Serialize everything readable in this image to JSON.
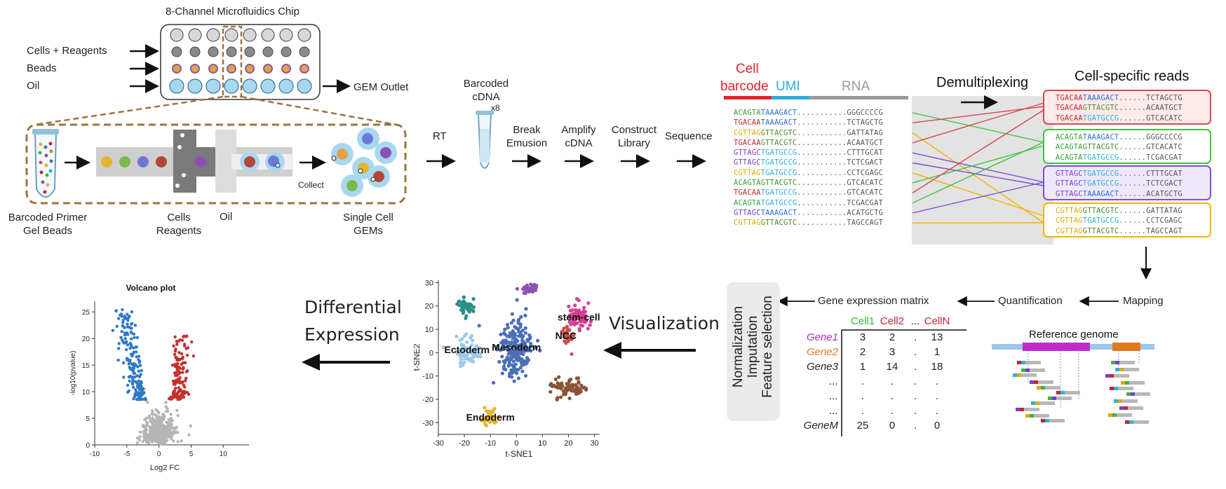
{
  "microfluidics": {
    "chip_title": "8-Channel Microfluidics Chip",
    "inputs": [
      "Cells + Reagents",
      "Beads",
      "Oil"
    ],
    "outlet": "GEM Outlet",
    "gel_beads_label": "Barcoded Primer Gel Beads",
    "cells_label": "Cells Reagents",
    "oil_label": "Oil",
    "collect_label": "Collect",
    "gems_label": "Single Cell GEMs"
  },
  "workflow": {
    "rt": "RT",
    "cdna_label": "Barcoded cDNA",
    "cdna_mult": "x8",
    "break": "Break Emusion",
    "amplify": "Amplify cDNA",
    "construct": "Construct Library",
    "sequence": "Sequence"
  },
  "demux": {
    "cell_label": "Cell",
    "barcode_label": "barcode",
    "umi_label": "UMI",
    "rna_label": "RNA",
    "demux_label": "Demultiplexing",
    "reads_label": "Cell-specific reads",
    "left_reads": [
      {
        "bc": "ACAGTA",
        "umi": "TAAAGACT",
        "rna": "GGGCCCCG",
        "bc_color": "#2fa52f"
      },
      {
        "bc": "TGACAA",
        "umi": "TAAAGACT",
        "rna": "TCTAGCTG",
        "bc_color": "#c0282e"
      },
      {
        "bc": "CGTTAG",
        "umi": "GTTACGTC",
        "rna": "GATTATAG",
        "bc_color": "#e0a800"
      },
      {
        "bc": "TGACAA",
        "umi": "GTTACGTC",
        "rna": "ACAATGCT",
        "bc_color": "#c0282e"
      },
      {
        "bc": "GTTAGC",
        "umi": "TGATGCCG",
        "rna": "CTTTGCAT",
        "bc_color": "#7a3fd0"
      },
      {
        "bc": "GTTAGC",
        "umi": "TGATGCCG",
        "rna": "TCTCGACT",
        "bc_color": "#7a3fd0"
      },
      {
        "bc": "CGTTAG",
        "umi": "TGATGCCG",
        "rna": "CCTCGAGC",
        "bc_color": "#e0a800"
      },
      {
        "bc": "ACAGTA",
        "umi": "GTTACGTC",
        "rna": "GTCACATC",
        "bc_color": "#2fa52f"
      },
      {
        "bc": "TGACAA",
        "umi": "TGATGCCG",
        "rna": "GTCACATC",
        "bc_color": "#c0282e"
      },
      {
        "bc": "ACAGTA",
        "umi": "TGATGCCG",
        "rna": "TCGACGAT",
        "bc_color": "#2fa52f"
      },
      {
        "bc": "GTTAGC",
        "umi": "TAAAGACT",
        "rna": "ACATGCTG",
        "bc_color": "#7a3fd0"
      },
      {
        "bc": "CGTTAG",
        "umi": "GTTACGTC",
        "rna": "TAGCCAGT",
        "bc_color": "#e0a800"
      }
    ],
    "groups": [
      {
        "color": "#d9474f",
        "bg": "#fdeaea",
        "bc_color": "#c0282e",
        "reads": [
          {
            "bc": "TGACAA",
            "umi": "TAAAGACT",
            "rna": "TCTAGCTG"
          },
          {
            "bc": "TGACAA",
            "umi": "GTTACGTC",
            "rna": "ACAATGCT"
          },
          {
            "bc": "TGACAA",
            "umi": "TGATGCCG",
            "rna": "GTCACATC"
          }
        ]
      },
      {
        "color": "#3cc43c",
        "bg": "#ffffff",
        "bc_color": "#2fa52f",
        "reads": [
          {
            "bc": "ACAGTA",
            "umi": "TAAAGACT",
            "rna": "GGGCCCCG"
          },
          {
            "bc": "ACAGTA",
            "umi": "GTTACGTC",
            "rna": "GTCACATC"
          },
          {
            "bc": "ACAGTA",
            "umi": "TGATGCCG",
            "rna": "TCGACGAT"
          }
        ]
      },
      {
        "color": "#7a4fd6",
        "bg": "#efe8fb",
        "bc_color": "#7a3fd0",
        "reads": [
          {
            "bc": "GTTAGC",
            "umi": "TGATGCCG",
            "rna": "CTTTGCAT"
          },
          {
            "bc": "GTTAGC",
            "umi": "TGATGCCG",
            "rna": "TCTCGACT"
          },
          {
            "bc": "GTTAGC",
            "umi": "TAAAGACT",
            "rna": "ACATGCTG"
          }
        ]
      },
      {
        "color": "#f0b400",
        "bg": "#ffffff",
        "bc_color": "#e0a800",
        "reads": [
          {
            "bc": "CGTTAG",
            "umi": "GTTACGTC",
            "rna": "GATTATAG"
          },
          {
            "bc": "CGTTAG",
            "umi": "TGATGCCG",
            "rna": "CCTCGAGC"
          },
          {
            "bc": "CGTTAG",
            "umi": "GTTACGTC",
            "rna": "TAGCCAGT"
          }
        ]
      }
    ],
    "umi_colors": {
      "TAAAGACT": "#2a6fd6",
      "GTTACGTC": "#4a8a2a",
      "TGATGCCG": "#2ab0e0"
    }
  },
  "pipeline": {
    "mapping": "Mapping",
    "quantification": "Quantification",
    "gene_matrix": "Gene expression matrix",
    "reference_genome": "Reference genome",
    "processing": [
      "Normalization",
      "Imputation",
      "Feature selection"
    ],
    "visualization": "Visualization",
    "differential": [
      "Differential",
      "Expression"
    ]
  },
  "matrix": {
    "columns": [
      "Cell1",
      "Cell2",
      "...",
      "CellN"
    ],
    "column_colors": [
      "#3cb43c",
      "#c0282e",
      "#222222",
      "#c0282e"
    ],
    "rows": [
      {
        "gene": "Gene1",
        "color": "#b02fc0",
        "values": [
          "3",
          "2",
          ".",
          "13"
        ]
      },
      {
        "gene": "Gene2",
        "color": "#e07a1f",
        "values": [
          "2",
          "3",
          ".",
          "1"
        ]
      },
      {
        "gene": "Gene3",
        "color": "#222222",
        "values": [
          "1",
          "14",
          ".",
          "18"
        ]
      },
      {
        "gene": "...",
        "color": "#222222",
        "values": [
          ".",
          ".",
          ".",
          "."
        ]
      },
      {
        "gene": "...",
        "color": "#222222",
        "values": [
          ".",
          ".",
          ".",
          "."
        ]
      },
      {
        "gene": "...",
        "color": "#222222",
        "values": [
          ".",
          ".",
          ".",
          "."
        ]
      },
      {
        "gene": "GeneM",
        "color": "#222222",
        "values": [
          "25",
          "0",
          ".",
          "0"
        ]
      }
    ]
  },
  "chart_data": [
    {
      "type": "scatter",
      "title": "",
      "xlabel": "t-SNE1",
      "ylabel": "t-SNE2",
      "xlim": [
        -30,
        32
      ],
      "ylim": [
        -35,
        31
      ],
      "xticks": [
        "-30",
        "-20",
        "-10",
        "0",
        "10",
        "20",
        "30"
      ],
      "yticks": [
        "30",
        "20",
        "10",
        "0",
        "-10",
        "-20",
        "-30"
      ],
      "clusters": [
        {
          "label": "Mesoderm",
          "color": "#4a6fb5",
          "center": [
            0,
            2
          ],
          "spread": [
            7,
            13
          ],
          "n": 200
        },
        {
          "label": "Ectoderm",
          "color": "#9cc8ea",
          "center": [
            -19,
            1
          ],
          "spread": [
            5,
            6
          ],
          "n": 70
        },
        {
          "label": "Endoderm",
          "color": "#e3b631",
          "center": [
            -10,
            -28
          ],
          "spread": [
            3.5,
            3.5
          ],
          "n": 45
        },
        {
          "label": "stem-cell",
          "color": "#d63f8f",
          "center": [
            24,
            15
          ],
          "spread": [
            4.5,
            6
          ],
          "n": 70
        },
        {
          "label": "NCC",
          "color": "#c65248",
          "center": [
            19,
            7
          ],
          "spread": [
            3,
            4
          ],
          "n": 35
        },
        {
          "label": "",
          "color": "#8a5236",
          "center": [
            20,
            -15
          ],
          "spread": [
            7,
            4
          ],
          "n": 70
        },
        {
          "label": "",
          "color": "#2a8f86",
          "center": [
            -19,
            20
          ],
          "spread": [
            3.5,
            4
          ],
          "n": 40
        },
        {
          "label": "",
          "color": "#8b52b5",
          "center": [
            5,
            27
          ],
          "spread": [
            3,
            2
          ],
          "n": 25
        }
      ]
    },
    {
      "type": "scatter",
      "title": "Volcano plot",
      "xlabel": "Log2 FC",
      "ylabel": "-log10(pvalue)",
      "xlim": [
        -10,
        14
      ],
      "ylim": [
        0,
        27
      ],
      "xticks": [
        "-10",
        "-5",
        "0",
        "5",
        "10"
      ],
      "yticks": [
        "0",
        "5",
        "10",
        "15",
        "20",
        "25"
      ],
      "series": [
        {
          "name": "down",
          "color": "#2f79c4"
        },
        {
          "name": "up",
          "color": "#c4302b"
        },
        {
          "name": "ns",
          "color": "#b5b5b5"
        }
      ]
    }
  ]
}
